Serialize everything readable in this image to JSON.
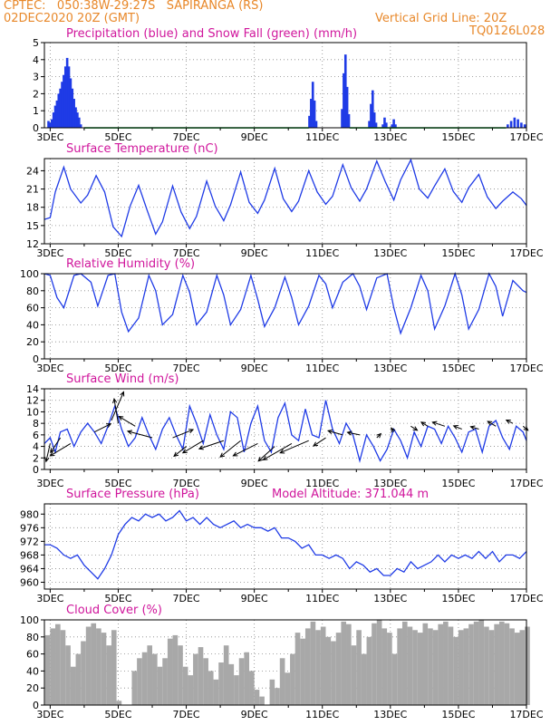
{
  "header": {
    "line1_left": "CPTEC:   050:38W-29:27S   SAPIRANGA (RS)",
    "line2_left": "02DEC2020 20Z (GMT)",
    "line2_right": "Vertical Grid Line: 20Z",
    "line3_right": "TQ0126L028"
  },
  "colors": {
    "header": "#e8882a",
    "panel_title": "#d0169c",
    "series": "#1f3be6",
    "snow": "#1aa53a",
    "cloud": "#a8a8a8",
    "wind_arrow": "#000000"
  },
  "x_ticks": [
    "3DEC",
    "5DEC",
    "7DEC",
    "9DEC",
    "11DEC",
    "13DEC",
    "15DEC",
    "17DEC"
  ],
  "chart_data": [
    {
      "id": "precip",
      "type": "bar",
      "title": "Precipitation (blue) and Snow Fall (green) (mm/h)",
      "ylim": [
        0,
        5
      ],
      "yticks": [
        0,
        1,
        2,
        3,
        4,
        5
      ],
      "x_days": [
        2.83,
        17.0
      ],
      "bars": [
        [
          2.95,
          0.4
        ],
        [
          3.0,
          0.3
        ],
        [
          3.05,
          0.5
        ],
        [
          3.1,
          0.9
        ],
        [
          3.15,
          1.3
        ],
        [
          3.2,
          1.6
        ],
        [
          3.25,
          2.0
        ],
        [
          3.3,
          2.3
        ],
        [
          3.35,
          2.7
        ],
        [
          3.4,
          3.1
        ],
        [
          3.45,
          3.6
        ],
        [
          3.5,
          4.1
        ],
        [
          3.55,
          3.6
        ],
        [
          3.6,
          2.9
        ],
        [
          3.65,
          2.3
        ],
        [
          3.7,
          1.7
        ],
        [
          3.75,
          1.2
        ],
        [
          3.8,
          0.9
        ],
        [
          3.85,
          0.6
        ],
        [
          3.9,
          0.2
        ],
        [
          10.62,
          0.7
        ],
        [
          10.67,
          1.7
        ],
        [
          10.72,
          2.7
        ],
        [
          10.77,
          1.6
        ],
        [
          10.82,
          0.4
        ],
        [
          11.58,
          1.1
        ],
        [
          11.63,
          3.2
        ],
        [
          11.68,
          4.3
        ],
        [
          11.73,
          2.4
        ],
        [
          11.78,
          0.8
        ],
        [
          12.38,
          0.4
        ],
        [
          12.43,
          1.4
        ],
        [
          12.48,
          2.2
        ],
        [
          12.53,
          0.9
        ],
        [
          12.58,
          0.3
        ],
        [
          12.78,
          0.2
        ],
        [
          12.83,
          0.6
        ],
        [
          12.88,
          0.3
        ],
        [
          13.05,
          0.2
        ],
        [
          13.1,
          0.5
        ],
        [
          13.15,
          0.2
        ],
        [
          16.45,
          0.2
        ],
        [
          16.55,
          0.4
        ],
        [
          16.65,
          0.6
        ],
        [
          16.75,
          0.5
        ],
        [
          16.85,
          0.3
        ],
        [
          16.95,
          0.2
        ]
      ],
      "snow_line": 0.05
    },
    {
      "id": "temperature",
      "type": "line",
      "title": "Surface Temperature (nC)",
      "ylim": [
        12,
        26
      ],
      "yticks": [
        12,
        15,
        18,
        21,
        24
      ],
      "x_days": [
        2.83,
        17.0
      ],
      "x": [
        2.83,
        3.0,
        3.15,
        3.4,
        3.6,
        3.9,
        4.1,
        4.35,
        4.6,
        4.85,
        5.1,
        5.35,
        5.6,
        5.85,
        6.1,
        6.3,
        6.6,
        6.85,
        7.1,
        7.3,
        7.6,
        7.85,
        8.1,
        8.3,
        8.6,
        8.85,
        9.1,
        9.3,
        9.6,
        9.85,
        10.1,
        10.3,
        10.6,
        10.85,
        11.1,
        11.3,
        11.6,
        11.85,
        12.1,
        12.3,
        12.6,
        12.85,
        13.1,
        13.3,
        13.6,
        13.85,
        14.1,
        14.3,
        14.6,
        14.85,
        15.1,
        15.3,
        15.6,
        15.85,
        16.1,
        16.3,
        16.6,
        16.85,
        17.0
      ],
      "y": [
        16.0,
        16.3,
        20.5,
        24.6,
        21.0,
        18.7,
        20.0,
        23.2,
        20.5,
        14.8,
        13.2,
        18.2,
        21.6,
        17.5,
        13.6,
        15.6,
        21.5,
        17.2,
        14.5,
        16.5,
        22.3,
        18.2,
        15.8,
        18.4,
        23.8,
        18.8,
        17.0,
        19.2,
        24.4,
        19.4,
        17.3,
        19.0,
        24.0,
        20.5,
        18.5,
        19.8,
        25.0,
        21.2,
        19.0,
        21.0,
        25.6,
        22.2,
        19.2,
        22.5,
        25.8,
        21.0,
        19.5,
        21.5,
        24.3,
        20.6,
        18.8,
        21.2,
        23.4,
        19.7,
        17.8,
        19.0,
        20.5,
        19.4,
        18.3
      ]
    },
    {
      "id": "humidity",
      "type": "line",
      "title": "Relative Humidity (%)",
      "ylim": [
        0,
        100
      ],
      "yticks": [
        0,
        20,
        40,
        60,
        80,
        100
      ],
      "x_days": [
        2.83,
        17.0
      ],
      "x": [
        2.83,
        3.0,
        3.2,
        3.4,
        3.7,
        3.9,
        4.2,
        4.4,
        4.7,
        4.9,
        5.1,
        5.3,
        5.6,
        5.9,
        6.1,
        6.3,
        6.6,
        6.9,
        7.1,
        7.3,
        7.6,
        7.9,
        8.1,
        8.3,
        8.6,
        8.9,
        9.1,
        9.3,
        9.6,
        9.9,
        10.1,
        10.3,
        10.6,
        10.9,
        11.1,
        11.3,
        11.6,
        11.9,
        12.1,
        12.3,
        12.6,
        12.9,
        13.1,
        13.3,
        13.6,
        13.9,
        14.1,
        14.3,
        14.6,
        14.9,
        15.1,
        15.3,
        15.6,
        15.9,
        16.1,
        16.3,
        16.6,
        16.9,
        17.0
      ],
      "y": [
        100,
        98,
        72,
        60,
        98,
        100,
        90,
        62,
        98,
        100,
        55,
        32,
        48,
        98,
        80,
        40,
        52,
        98,
        78,
        40,
        55,
        98,
        75,
        40,
        58,
        98,
        70,
        38,
        60,
        96,
        72,
        40,
        62,
        98,
        88,
        60,
        90,
        100,
        85,
        58,
        95,
        100,
        60,
        30,
        60,
        98,
        80,
        35,
        62,
        100,
        75,
        35,
        58,
        100,
        85,
        50,
        92,
        80,
        78
      ]
    },
    {
      "id": "wind",
      "type": "line",
      "title": "Surface Wind (m/s)",
      "ylim": [
        0,
        14
      ],
      "yticks": [
        0,
        2,
        4,
        6,
        8,
        10,
        12,
        14
      ],
      "x_days": [
        2.83,
        17.0
      ],
      "x": [
        2.83,
        3.0,
        3.15,
        3.3,
        3.5,
        3.7,
        3.9,
        4.1,
        4.3,
        4.5,
        4.7,
        4.9,
        5.1,
        5.3,
        5.5,
        5.7,
        5.9,
        6.1,
        6.3,
        6.5,
        6.7,
        6.9,
        7.1,
        7.3,
        7.5,
        7.7,
        7.9,
        8.1,
        8.3,
        8.5,
        8.7,
        8.9,
        9.1,
        9.3,
        9.5,
        9.7,
        9.9,
        10.1,
        10.3,
        10.5,
        10.7,
        10.9,
        11.1,
        11.3,
        11.5,
        11.7,
        11.9,
        12.1,
        12.3,
        12.5,
        12.7,
        12.9,
        13.1,
        13.3,
        13.5,
        13.7,
        13.9,
        14.1,
        14.3,
        14.5,
        14.7,
        14.9,
        15.1,
        15.3,
        15.5,
        15.7,
        15.9,
        16.1,
        16.3,
        16.5,
        16.7,
        16.9,
        17.0
      ],
      "y": [
        4.5,
        5.5,
        3.0,
        6.5,
        7.0,
        4.0,
        6.5,
        8.0,
        6.5,
        4.5,
        7.5,
        11.0,
        7.0,
        4.0,
        5.5,
        9.0,
        6.0,
        3.5,
        7.0,
        9.0,
        6.0,
        3.5,
        11.0,
        8.0,
        4.5,
        9.5,
        6.0,
        3.5,
        10.0,
        9.0,
        3.0,
        8.0,
        11.0,
        5.0,
        3.0,
        9.0,
        11.5,
        6.0,
        5.0,
        10.5,
        6.0,
        5.5,
        12.0,
        7.0,
        4.5,
        8.0,
        6.0,
        1.5,
        6.0,
        4.0,
        1.5,
        3.5,
        7.0,
        5.0,
        2.0,
        6.5,
        4.0,
        7.5,
        7.0,
        4.5,
        7.5,
        5.5,
        3.0,
        6.5,
        7.0,
        3.0,
        7.5,
        8.5,
        5.5,
        3.5,
        7.5,
        6.5,
        5.0
      ],
      "vectors": [
        {
          "x": 3.0,
          "v": 4.5,
          "u": -0.5,
          "w": -2.2
        },
        {
          "x": 3.3,
          "v": 5.5,
          "u": -1.2,
          "w": -1.8
        },
        {
          "x": 3.6,
          "v": 4.5,
          "u": -2.5,
          "w": -1.5
        },
        {
          "x": 4.3,
          "v": 6.5,
          "u": 2.0,
          "w": 1.0
        },
        {
          "x": 4.8,
          "v": 8.5,
          "u": 1.5,
          "w": 3.5
        },
        {
          "x": 5.0,
          "v": 8.0,
          "u": -0.5,
          "w": 3.0
        },
        {
          "x": 5.5,
          "v": 7.5,
          "u": -2.0,
          "w": 1.2
        },
        {
          "x": 6.0,
          "v": 5.5,
          "u": -3.0,
          "w": 0.8
        },
        {
          "x": 6.6,
          "v": 5.5,
          "u": 2.5,
          "w": 1.0
        },
        {
          "x": 7.0,
          "v": 4.0,
          "u": -1.5,
          "w": -1.2
        },
        {
          "x": 7.5,
          "v": 5.0,
          "u": -2.5,
          "w": -1.5
        },
        {
          "x": 8.1,
          "v": 5.0,
          "u": -3.0,
          "w": -1.0
        },
        {
          "x": 8.6,
          "v": 5.0,
          "u": -2.5,
          "w": -2.0
        },
        {
          "x": 9.1,
          "v": 4.5,
          "u": -3.0,
          "w": -1.5
        },
        {
          "x": 9.6,
          "v": 4.0,
          "u": -2.0,
          "w": -1.8
        },
        {
          "x": 10.1,
          "v": 4.5,
          "u": -3.5,
          "w": -2.0
        },
        {
          "x": 10.6,
          "v": 5.0,
          "u": -3.5,
          "w": -1.5
        },
        {
          "x": 11.1,
          "v": 5.5,
          "u": -1.5,
          "w": -1.0
        },
        {
          "x": 11.6,
          "v": 6.0,
          "u": -1.8,
          "w": 0.5
        },
        {
          "x": 12.1,
          "v": 6.0,
          "u": -1.5,
          "w": 0.3
        },
        {
          "x": 12.6,
          "v": 5.5,
          "u": 0.5,
          "w": 0.5
        },
        {
          "x": 13.1,
          "v": 6.5,
          "u": -0.3,
          "w": 0.5
        },
        {
          "x": 13.6,
          "v": 7.5,
          "u": 0.8,
          "w": -0.5
        },
        {
          "x": 14.1,
          "v": 7.5,
          "u": -0.8,
          "w": 0.5
        },
        {
          "x": 14.6,
          "v": 7.5,
          "u": -1.5,
          "w": 0.5
        },
        {
          "x": 15.1,
          "v": 7.0,
          "u": -1.0,
          "w": 0.4
        },
        {
          "x": 15.6,
          "v": 7.0,
          "u": -1.0,
          "w": 0.3
        },
        {
          "x": 16.1,
          "v": 7.5,
          "u": -1.0,
          "w": 0.6
        },
        {
          "x": 16.6,
          "v": 8.0,
          "u": -0.8,
          "w": 0.4
        },
        {
          "x": 16.9,
          "v": 7.5,
          "u": 0.6,
          "w": -0.5
        }
      ]
    },
    {
      "id": "pressure",
      "type": "line",
      "title": "Surface Pressure (hPa)",
      "subtitle": "Model Altitude: 371.044 m",
      "ylim": [
        958,
        983
      ],
      "yticks": [
        960,
        964,
        968,
        972,
        976,
        980
      ],
      "x_days": [
        2.83,
        17.0
      ],
      "x": [
        2.83,
        3.0,
        3.2,
        3.4,
        3.6,
        3.8,
        4.0,
        4.2,
        4.4,
        4.6,
        4.8,
        5.0,
        5.2,
        5.4,
        5.6,
        5.8,
        6.0,
        6.2,
        6.4,
        6.6,
        6.8,
        7.0,
        7.2,
        7.4,
        7.6,
        7.8,
        8.0,
        8.2,
        8.4,
        8.6,
        8.8,
        9.0,
        9.2,
        9.4,
        9.6,
        9.8,
        10.0,
        10.2,
        10.4,
        10.6,
        10.8,
        11.0,
        11.2,
        11.4,
        11.6,
        11.8,
        12.0,
        12.2,
        12.4,
        12.6,
        12.8,
        13.0,
        13.2,
        13.4,
        13.6,
        13.8,
        14.0,
        14.2,
        14.4,
        14.6,
        14.8,
        15.0,
        15.2,
        15.4,
        15.6,
        15.8,
        16.0,
        16.2,
        16.4,
        16.6,
        16.8,
        17.0
      ],
      "y": [
        971,
        971,
        970,
        968,
        967,
        968,
        965,
        963,
        961,
        964,
        968,
        974,
        977,
        979,
        978,
        980,
        979,
        980,
        978,
        979,
        981,
        978,
        979,
        977,
        979,
        977,
        976,
        977,
        978,
        976,
        977,
        976,
        976,
        975,
        976,
        973,
        973,
        972,
        970,
        971,
        968,
        968,
        967,
        968,
        967,
        964,
        966,
        965,
        963,
        964,
        962,
        962,
        964,
        963,
        966,
        964,
        965,
        966,
        968,
        966,
        968,
        967,
        968,
        967,
        969,
        967,
        969,
        966,
        968,
        968,
        967,
        969
      ]
    },
    {
      "id": "cloud",
      "type": "bar",
      "title": "Cloud Cover (%)",
      "ylim": [
        0,
        100
      ],
      "yticks": [
        0,
        20,
        40,
        60,
        80,
        100
      ],
      "x_days": [
        2.83,
        17.0
      ],
      "x": [
        2.85,
        3.0,
        3.15,
        3.3,
        3.45,
        3.6,
        3.75,
        3.9,
        4.05,
        4.2,
        4.35,
        4.5,
        4.65,
        4.8,
        4.95,
        5.1,
        5.25,
        5.4,
        5.55,
        5.7,
        5.85,
        6.0,
        6.15,
        6.3,
        6.45,
        6.6,
        6.75,
        6.9,
        7.05,
        7.2,
        7.35,
        7.5,
        7.65,
        7.8,
        7.95,
        8.1,
        8.25,
        8.4,
        8.55,
        8.7,
        8.85,
        9.0,
        9.15,
        9.3,
        9.45,
        9.6,
        9.75,
        9.9,
        10.05,
        10.2,
        10.35,
        10.5,
        10.65,
        10.8,
        10.95,
        11.1,
        11.25,
        11.4,
        11.55,
        11.7,
        11.85,
        12.0,
        12.15,
        12.3,
        12.45,
        12.6,
        12.75,
        12.9,
        13.05,
        13.2,
        13.35,
        13.5,
        13.65,
        13.8,
        13.95,
        14.1,
        14.25,
        14.4,
        14.55,
        14.7,
        14.85,
        15.0,
        15.15,
        15.3,
        15.45,
        15.6,
        15.75,
        15.9,
        16.05,
        16.2,
        16.35,
        16.5,
        16.65,
        16.8,
        16.95
      ],
      "y": [
        82,
        90,
        95,
        88,
        70,
        45,
        60,
        75,
        92,
        96,
        90,
        85,
        70,
        88,
        5,
        0,
        0,
        40,
        55,
        62,
        70,
        60,
        45,
        55,
        78,
        82,
        70,
        45,
        35,
        60,
        68,
        55,
        40,
        30,
        50,
        70,
        48,
        35,
        55,
        62,
        40,
        18,
        10,
        0,
        30,
        20,
        55,
        38,
        60,
        85,
        78,
        90,
        98,
        88,
        92,
        80,
        75,
        85,
        98,
        95,
        70,
        88,
        60,
        80,
        96,
        100,
        90,
        85,
        60,
        90,
        98,
        92,
        88,
        85,
        96,
        90,
        88,
        95,
        98,
        92,
        80,
        88,
        90,
        95,
        98,
        100,
        92,
        88,
        95,
        98,
        96,
        90,
        85,
        88,
        92
      ]
    }
  ]
}
